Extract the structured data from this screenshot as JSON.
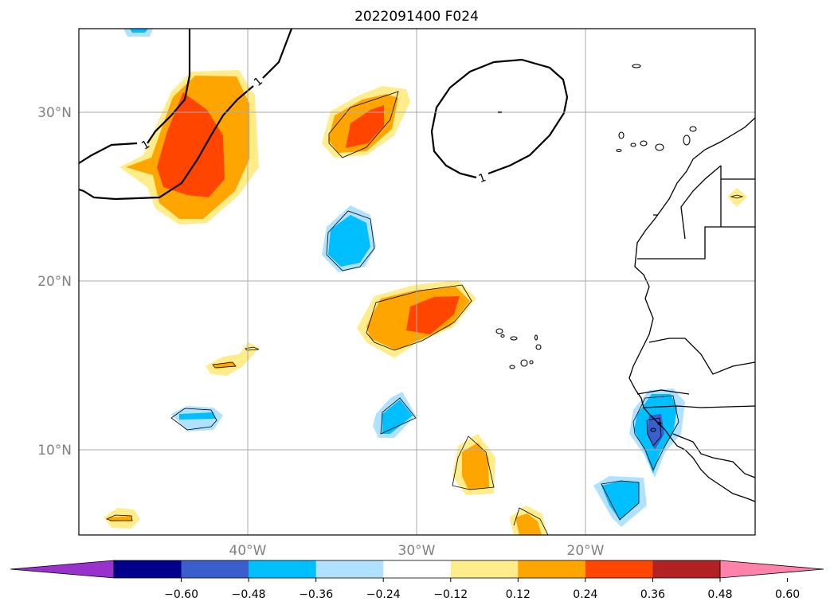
{
  "title": "2022091400 F024",
  "map": {
    "lat_ticks": [
      {
        "value": 30,
        "label": "30°N"
      },
      {
        "value": 20,
        "label": "20°N"
      },
      {
        "value": 10,
        "label": "10°N"
      }
    ],
    "lon_ticks": [
      {
        "value": -40,
        "label": "40°W"
      },
      {
        "value": -30,
        "label": "30°W"
      },
      {
        "value": -20,
        "label": "20°W"
      }
    ],
    "contour_label": "1",
    "grid": true
  },
  "colorbar": {
    "extend": "both",
    "colors": [
      "#9932cc",
      "#00008b",
      "#3a5fcd",
      "#00bfff",
      "#b0e2ff",
      "#ffffff",
      "#ffec8b",
      "#ffa500",
      "#ff4500",
      "#b22222",
      "#ff82ab"
    ],
    "tick_labels": [
      "−0.60",
      "−0.48",
      "−0.36",
      "−0.24",
      "−0.12",
      "0.12",
      "0.24",
      "0.36",
      "0.48",
      "0.60"
    ]
  }
}
